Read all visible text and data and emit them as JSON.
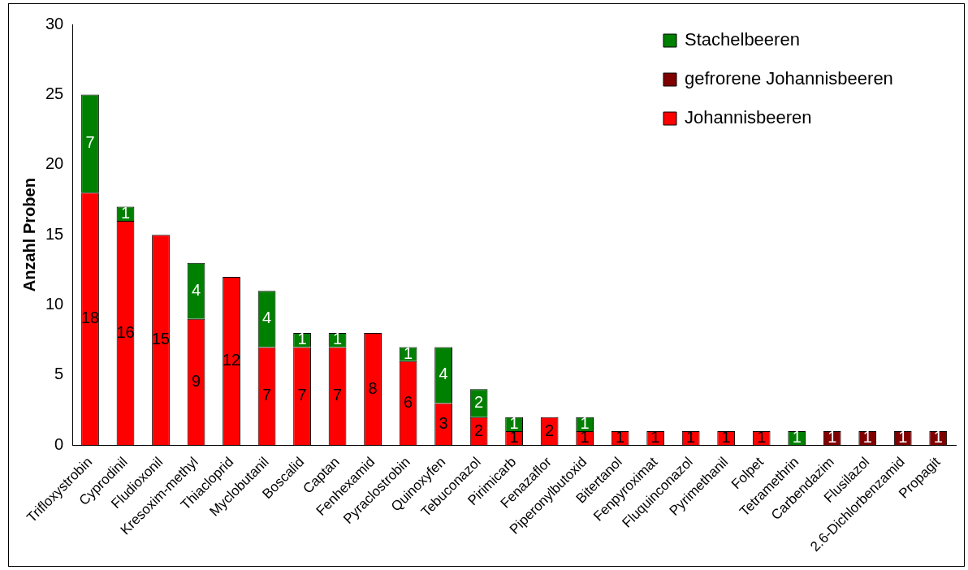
{
  "chart_data": {
    "type": "bar",
    "stacked": true,
    "ylabel": "Anzahl Proben",
    "categories": [
      "Trifloxystrobin",
      "Cyprodinil",
      "Fludioxonil",
      "Kresoxim-methyl",
      "Thiacloprid",
      "Myclobutanil",
      "Boscalid",
      "Captan",
      "Fenhexamid",
      "Pyraclostrobin",
      "Quinoxyfen",
      "Tebuconazol",
      "Pirimicarb",
      "Fenazaflor",
      "Piperonylbutoxid",
      "Bitertanol",
      "Fenpyroximat",
      "Fluquinconazol",
      "Pyrimethanil",
      "Folpet",
      "Tetramethrin",
      "Carbendazim",
      "Flusilazol",
      "2.6-Dichlorbenzamid",
      "Propagit"
    ],
    "series": [
      {
        "name": "Johannisbeeren",
        "color": "#ff0000",
        "values": [
          18,
          16,
          15,
          9,
          12,
          7,
          7,
          7,
          8,
          6,
          3,
          2,
          1,
          2,
          1,
          1,
          1,
          1,
          1,
          1,
          null,
          null,
          null,
          null,
          null
        ]
      },
      {
        "name": "gefrorene Johannisbeeren",
        "color": "#800000",
        "values": [
          null,
          null,
          null,
          null,
          null,
          null,
          null,
          null,
          null,
          null,
          null,
          null,
          null,
          null,
          null,
          null,
          null,
          null,
          null,
          null,
          null,
          1,
          1,
          1,
          1
        ]
      },
      {
        "name": "Stachelbeeren",
        "color": "#008000",
        "values": [
          7,
          1,
          null,
          4,
          null,
          4,
          1,
          1,
          null,
          1,
          4,
          2,
          1,
          null,
          1,
          null,
          null,
          null,
          null,
          null,
          1,
          null,
          null,
          null,
          null
        ]
      }
    ],
    "ylim": [
      0,
      30
    ],
    "yticks": [
      0,
      5,
      10,
      15,
      20,
      25,
      30
    ],
    "grid": false,
    "legend": "top right",
    "data_labels": true
  }
}
